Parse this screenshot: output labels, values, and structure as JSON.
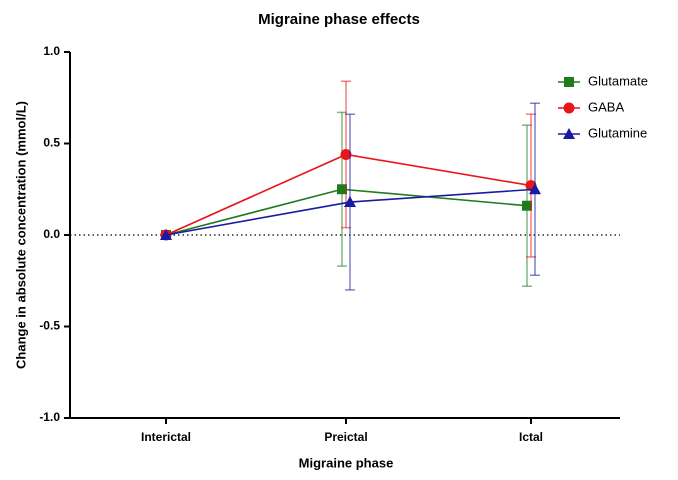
{
  "chart_data": {
    "type": "line",
    "title": "Migraine phase effects",
    "x_label": "Migraine phase",
    "y_label": "Change in absolute concentration (mmol/L)",
    "categories": [
      "Interictal",
      "Preictal",
      "Ictal"
    ],
    "series": [
      {
        "name": "Glutamate",
        "color": "#1e7b1e",
        "marker": "square",
        "values": [
          0,
          0.25,
          0.16
        ],
        "errors": [
          null,
          0.42,
          0.44
        ]
      },
      {
        "name": "GABA",
        "color": "#e8151b",
        "marker": "circle",
        "values": [
          0,
          0.44,
          0.27
        ],
        "errors": [
          null,
          0.4,
          0.39
        ]
      },
      {
        "name": "Glutamine",
        "color": "#1a1aa0",
        "marker": "triangle",
        "values": [
          0,
          0.18,
          0.25
        ],
        "errors": [
          null,
          0.48,
          0.47
        ]
      }
    ],
    "ylim": [
      -1,
      1
    ],
    "yticks": [
      {
        "value": -1,
        "label": "-1.0"
      },
      {
        "value": -0.5,
        "label": "-0.5"
      },
      {
        "value": 0,
        "label": "0.0"
      },
      {
        "value": 0.5,
        "label": "0.5"
      },
      {
        "value": 1,
        "label": "1.0"
      }
    ],
    "reference_line": 0,
    "legend": "top-right"
  }
}
